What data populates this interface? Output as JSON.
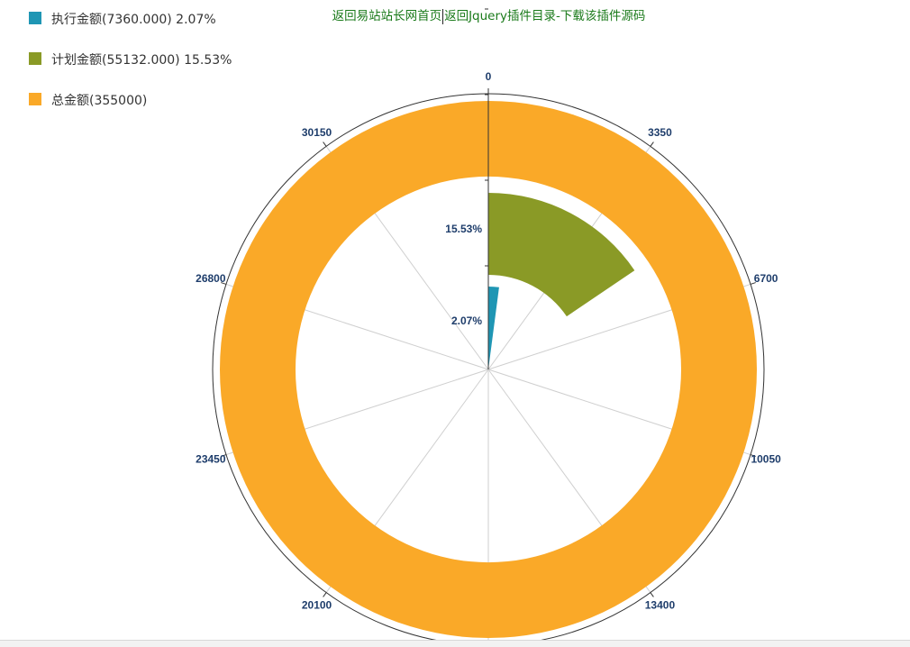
{
  "nav": {
    "link_home": "返回易站站长网首页",
    "link_catalog": "返回Jquery插件目录-下载该插件源码"
  },
  "legend": [
    {
      "label": "执行金额(7360.000) 2.07%",
      "color": "#1f96b4"
    },
    {
      "label": "计划金额(55132.000) 15.53%",
      "color": "#8a9a26"
    },
    {
      "label": "总金额(355000)",
      "color": "#faa928"
    }
  ],
  "chart_data": {
    "type": "radial-bar",
    "angle_axis": {
      "min": 0,
      "max": 33500,
      "ticks": [
        0,
        3350,
        6700,
        10050,
        13400,
        20100,
        23450,
        26800,
        30150
      ],
      "tick_labels": [
        "0",
        "3350",
        "6700",
        "10050",
        "13400",
        "20100",
        "23450",
        "26800",
        "30150"
      ]
    },
    "series": [
      {
        "name": "执行金额",
        "value": 7360.0,
        "percent": 2.07,
        "label": "2.07%",
        "color": "#1f96b4"
      },
      {
        "name": "计划金额",
        "value": 55132.0,
        "percent": 15.53,
        "label": "15.53%",
        "color": "#8a9a26"
      },
      {
        "name": "总金额",
        "value": 355000,
        "percent": 100,
        "label": "",
        "color": "#faa928"
      }
    ],
    "grid": true
  }
}
